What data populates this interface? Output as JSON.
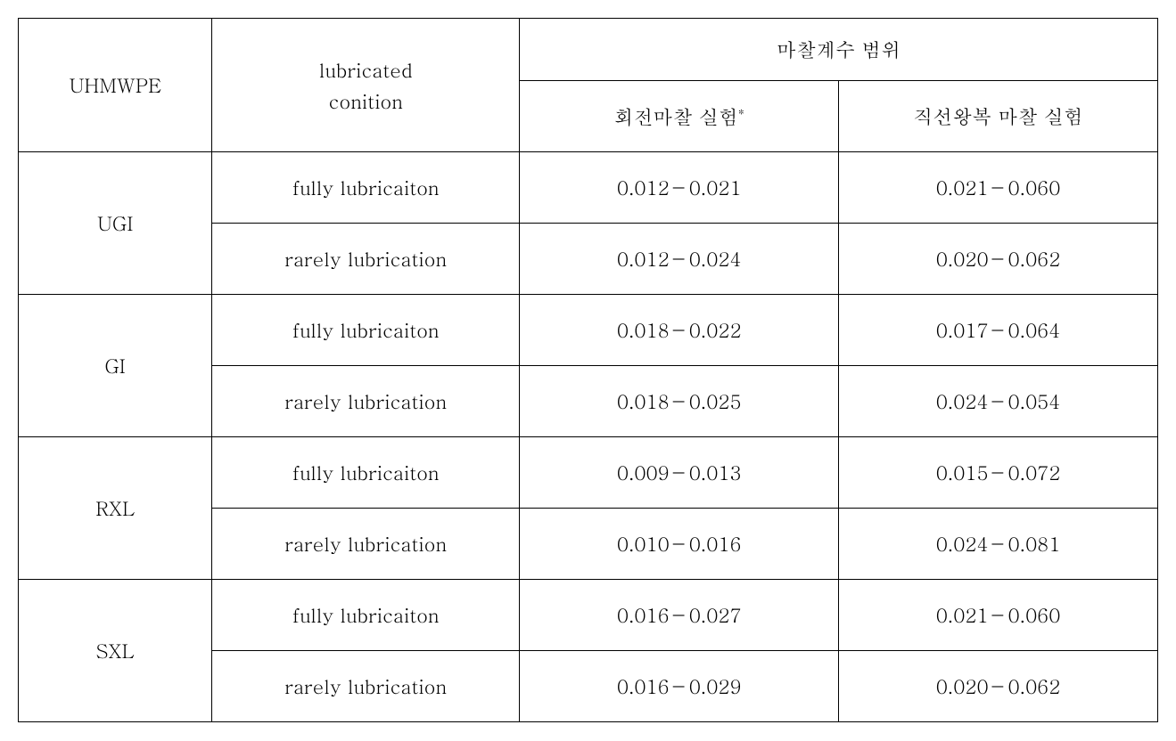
{
  "table": {
    "header": {
      "uhmwpe": "UHMWPE",
      "condition_line1": "lubricated",
      "condition_line2": "conition",
      "range_title": "마찰계수 범위",
      "exp1": "회전마찰 실험",
      "exp1_asterisk": "*",
      "exp2": "직선왕복 마찰 실험"
    },
    "groups": [
      {
        "name": "UGI",
        "rows": [
          {
            "condition": "fully lubricaiton",
            "exp1": "0.012－0.021",
            "exp2": "0.021－0.060"
          },
          {
            "condition": "rarely lubrication",
            "exp1": "0.012－0.024",
            "exp2": "0.020－0.062"
          }
        ]
      },
      {
        "name": "GI",
        "rows": [
          {
            "condition": "fully lubricaiton",
            "exp1": "0.018－0.022",
            "exp2": "0.017－0.064"
          },
          {
            "condition": "rarely lubrication",
            "exp1": "0.018－0.025",
            "exp2": "0.024－0.054"
          }
        ]
      },
      {
        "name": "RXL",
        "rows": [
          {
            "condition": "fully lubricaiton",
            "exp1": "0.009－0.013",
            "exp2": "0.015－0.072"
          },
          {
            "condition": "rarely lubrication",
            "exp1": "0.010－0.016",
            "exp2": "0.024－0.081"
          }
        ]
      },
      {
        "name": "SXL",
        "rows": [
          {
            "condition": "fully lubricaiton",
            "exp1": "0.016－0.027",
            "exp2": "0.021－0.060"
          },
          {
            "condition": "rarely lubrication",
            "exp1": "0.016－0.029",
            "exp2": "0.020－0.062"
          }
        ]
      }
    ]
  },
  "style": {
    "border_color": "#000000",
    "background_color": "#ffffff",
    "text_color": "#000000",
    "font_family": "Batang, serif",
    "cell_fontsize": 22,
    "asterisk_fontsize": 14,
    "header_row1_height": 70,
    "header_row2_height": 80,
    "data_row_height": 80,
    "col_widths_pct": [
      17,
      27,
      28,
      28
    ]
  }
}
